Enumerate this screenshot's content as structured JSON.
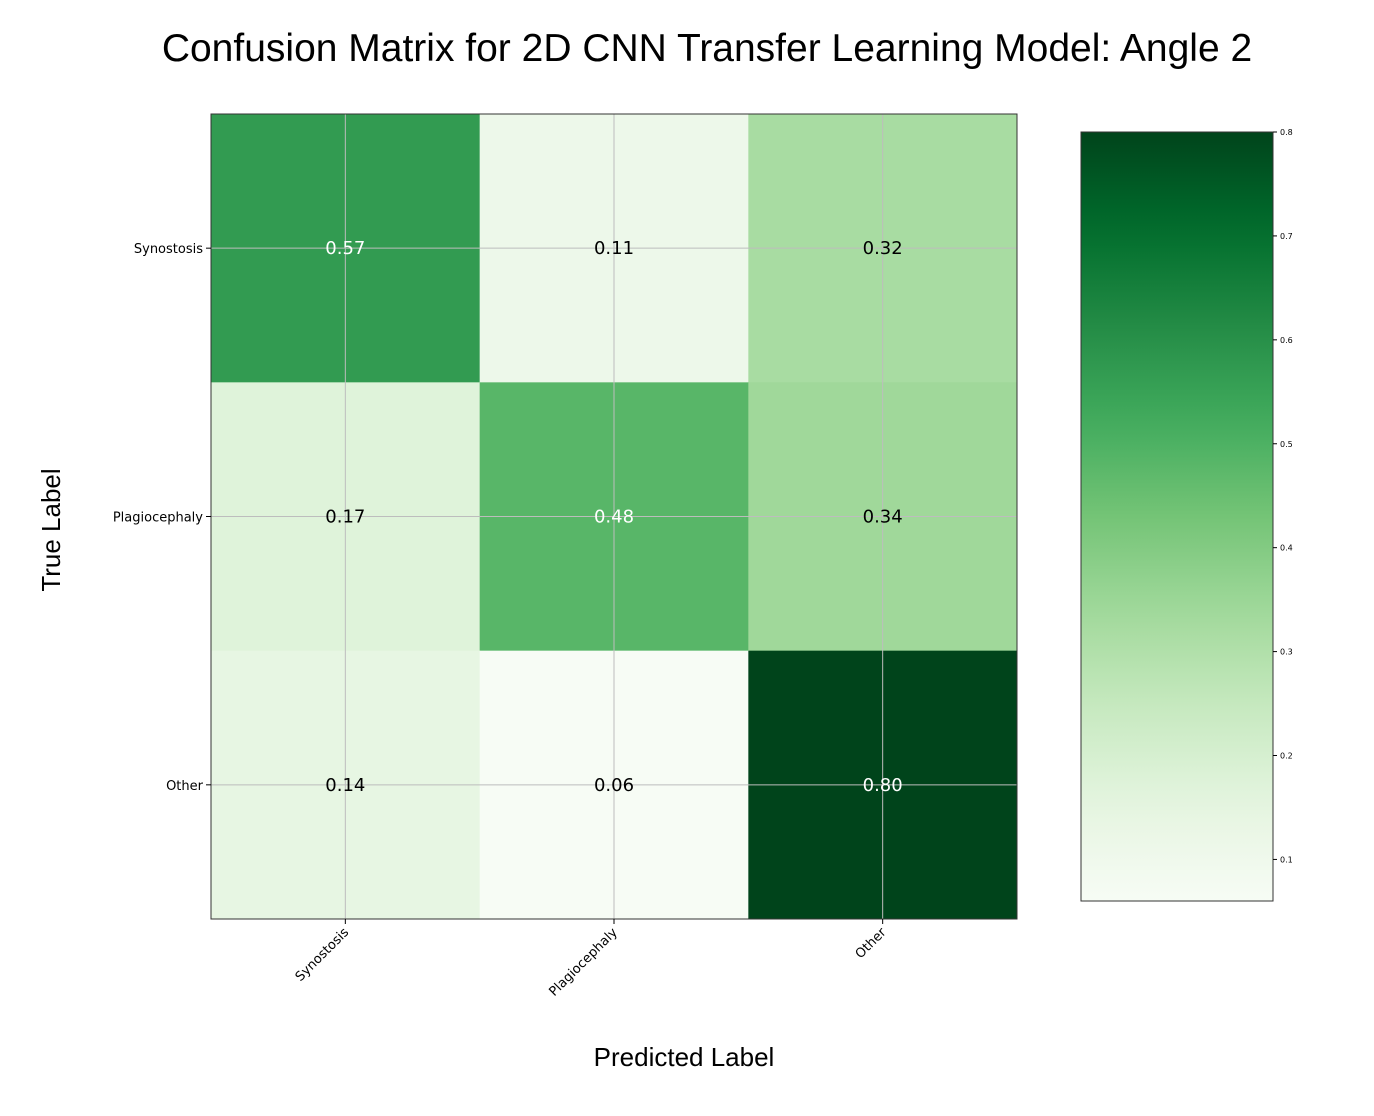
{
  "chart_data": {
    "type": "heatmap",
    "title": "Confusion Matrix for 2D CNN Transfer Learning Model: Angle 2",
    "xlabel": "Predicted Label",
    "ylabel": "True Label",
    "x_categories": [
      "Synostosis",
      "Plagiocephaly",
      "Other"
    ],
    "y_categories": [
      "Synostosis",
      "Plagiocephaly",
      "Other"
    ],
    "values": [
      [
        0.57,
        0.11,
        0.32
      ],
      [
        0.17,
        0.48,
        0.34
      ],
      [
        0.14,
        0.06,
        0.8
      ]
    ],
    "value_labels": [
      [
        "0.57",
        "0.11",
        "0.32"
      ],
      [
        "0.17",
        "0.48",
        "0.34"
      ],
      [
        "0.14",
        "0.06",
        "0.80"
      ]
    ],
    "colorbar": {
      "range": [
        0.06,
        0.8
      ],
      "ticks": [
        0.1,
        0.2,
        0.3,
        0.4,
        0.5,
        0.6,
        0.7,
        0.8
      ],
      "tick_labels": [
        "0.1",
        "0.2",
        "0.3",
        "0.4",
        "0.5",
        "0.6",
        "0.7",
        "0.8"
      ]
    },
    "colormap": "Greens",
    "grid": true
  }
}
